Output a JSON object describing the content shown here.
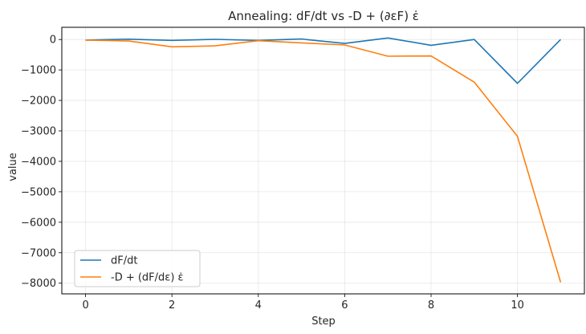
{
  "chart_data": {
    "type": "line",
    "title": "Annealing: dF/dt vs -D + (∂εF) ε̇",
    "xlabel": "Step",
    "ylabel": "value",
    "xlim": [
      -0.55,
      11.55
    ],
    "ylim": [
      -8350,
      400
    ],
    "xticks": [
      0,
      2,
      4,
      6,
      8,
      10
    ],
    "yticks": [
      0,
      -1000,
      -2000,
      -3000,
      -4000,
      -5000,
      -6000,
      -7000,
      -8000
    ],
    "grid": true,
    "legend_position": "lower-left",
    "x": [
      0,
      1,
      2,
      3,
      4,
      5,
      6,
      7,
      8,
      9,
      10,
      11
    ],
    "series": [
      {
        "name": "dF/dt",
        "color": "#1f77b4",
        "values": [
          -20,
          10,
          -30,
          5,
          -30,
          15,
          -130,
          50,
          -190,
          0,
          -1440,
          0
        ]
      },
      {
        "name": "-D + (dF/dε) ε̇",
        "color": "#ff7f0e",
        "values": [
          -20,
          -50,
          -240,
          -210,
          -40,
          -110,
          -180,
          -550,
          -540,
          -1400,
          -3180,
          -7970
        ]
      }
    ]
  }
}
